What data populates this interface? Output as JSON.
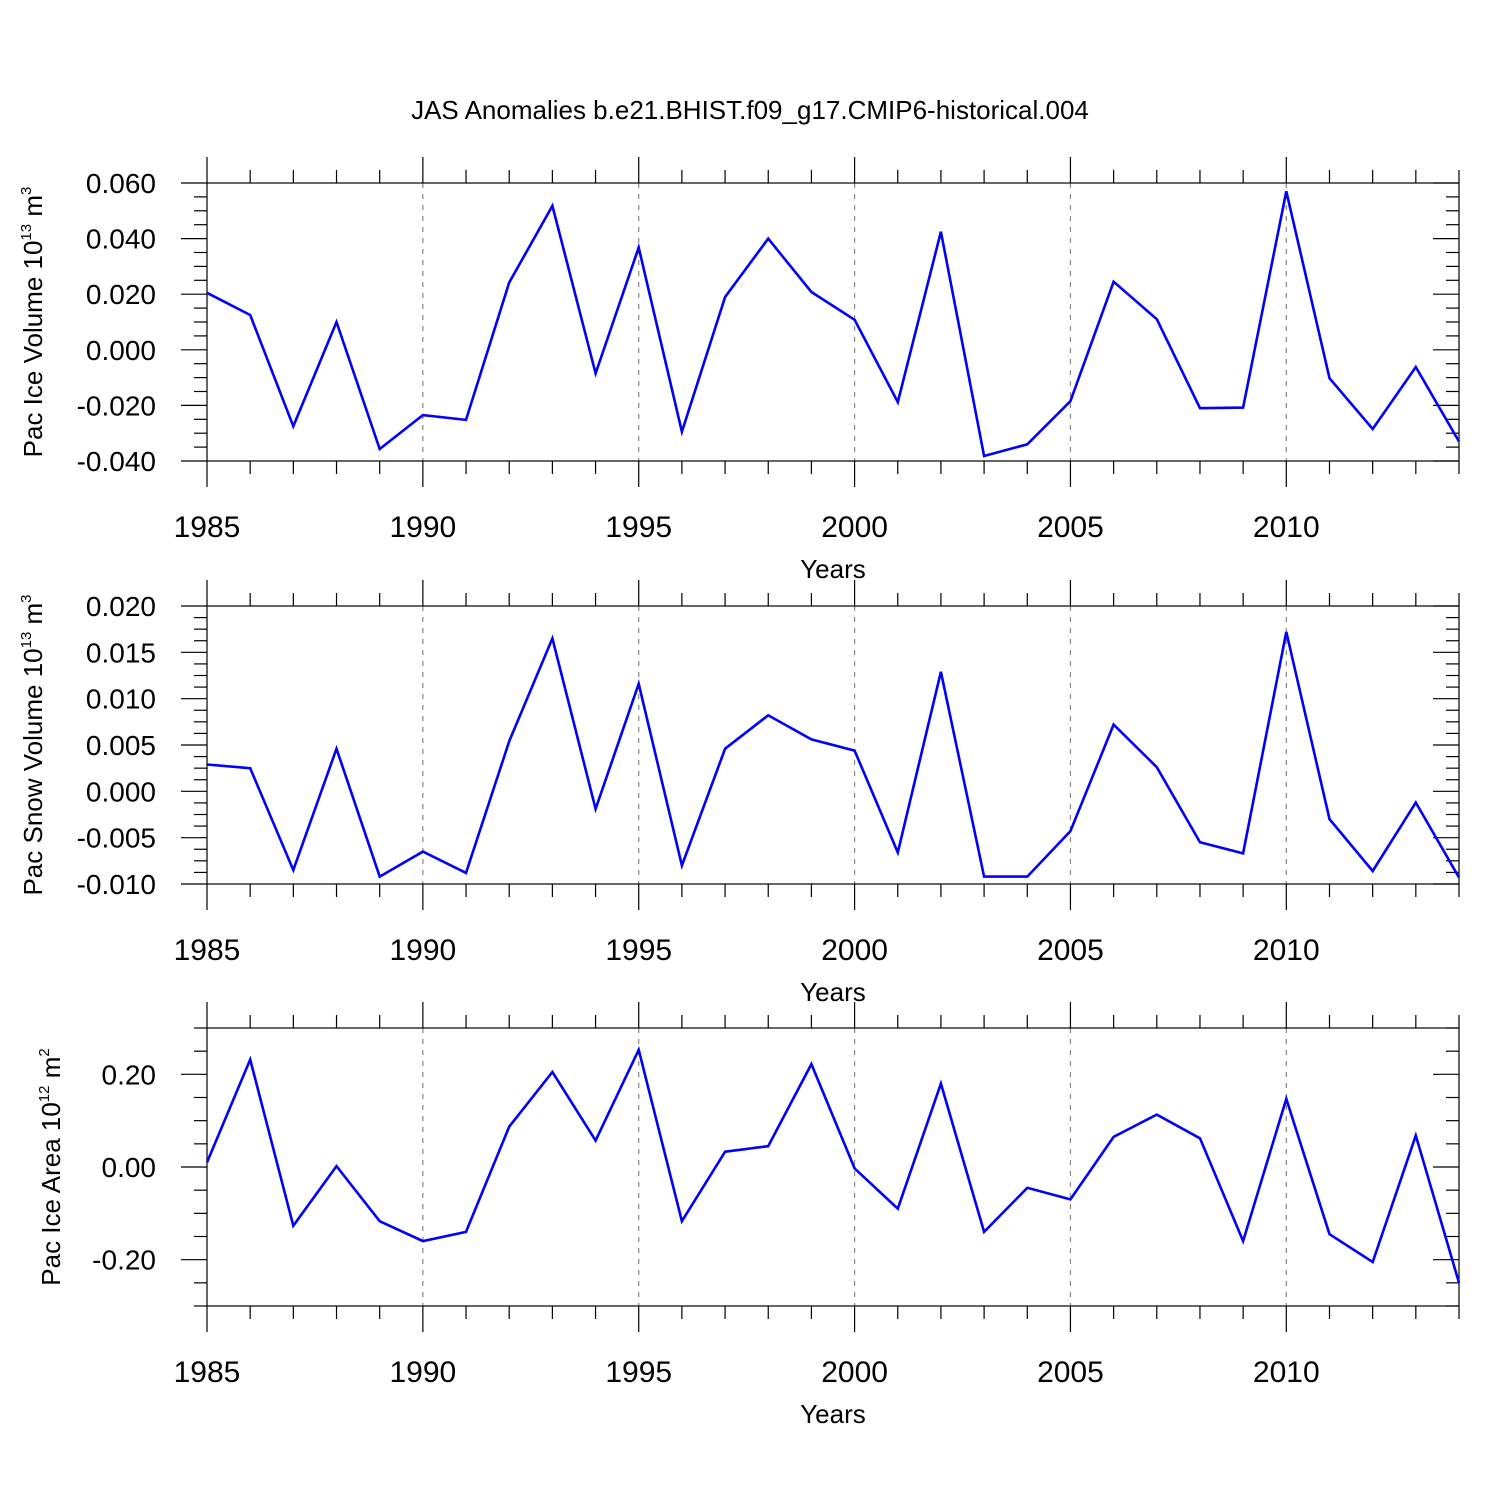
{
  "title": "JAS Anomalies b.e21.BHIST.f09_g17.CMIP6-historical.004",
  "line_color": "#0000ff",
  "chart_data": [
    {
      "type": "line",
      "ylabel": {
        "base": "Pac Ice Volume 10",
        "exp1": "13",
        "unit": " m",
        "exp2": "3"
      },
      "xlabel": "Years",
      "xlim": [
        1985,
        2014
      ],
      "ylim": [
        -0.04,
        0.06
      ],
      "x_ticks": [
        1985,
        1990,
        1995,
        2000,
        2005,
        2010
      ],
      "x_tick_labels": [
        "1985",
        "1990",
        "1995",
        "2000",
        "2005",
        "2010"
      ],
      "y_ticks": [
        -0.04,
        -0.02,
        0.0,
        0.02,
        0.04,
        0.06
      ],
      "y_tick_labels": [
        "-0.040",
        "-0.020",
        "0.000",
        "0.020",
        "0.040",
        "0.060"
      ],
      "x": [
        1985,
        1986,
        1987,
        1988,
        1989,
        1990,
        1991,
        1992,
        1993,
        1994,
        1995,
        1996,
        1997,
        1998,
        1999,
        2000,
        2001,
        2002,
        2003,
        2004,
        2005,
        2006,
        2007,
        2008,
        2009,
        2010,
        2011,
        2012,
        2013,
        2014
      ],
      "values": [
        0.0205,
        0.0125,
        -0.0275,
        0.01,
        -0.0357,
        -0.0235,
        -0.0252,
        0.0242,
        0.0518,
        -0.0085,
        0.0368,
        -0.0295,
        0.019,
        0.04,
        0.0208,
        0.0108,
        -0.0188,
        0.0425,
        -0.0382,
        -0.034,
        -0.0185,
        0.0245,
        0.011,
        -0.021,
        -0.0208,
        0.057,
        -0.0102,
        -0.0285,
        -0.0062,
        -0.033
      ]
    },
    {
      "type": "line",
      "ylabel": {
        "base": "Pac Snow Volume 10",
        "exp1": "13",
        "unit": " m",
        "exp2": "3"
      },
      "xlabel": "Years",
      "xlim": [
        1985,
        2014
      ],
      "ylim": [
        -0.01,
        0.02
      ],
      "x_ticks": [
        1985,
        1990,
        1995,
        2000,
        2005,
        2010
      ],
      "x_tick_labels": [
        "1985",
        "1990",
        "1995",
        "2000",
        "2005",
        "2010"
      ],
      "y_ticks": [
        -0.01,
        -0.005,
        0.0,
        0.005,
        0.01,
        0.015,
        0.02
      ],
      "y_tick_labels": [
        "-0.010",
        "-0.005",
        "0.000",
        "0.005",
        "0.010",
        "0.015",
        "0.020"
      ],
      "x": [
        1985,
        1986,
        1987,
        1988,
        1989,
        1990,
        1991,
        1992,
        1993,
        1994,
        1995,
        1996,
        1997,
        1998,
        1999,
        2000,
        2001,
        2002,
        2003,
        2004,
        2005,
        2006,
        2007,
        2008,
        2009,
        2010,
        2011,
        2012,
        2013,
        2014
      ],
      "values": [
        0.0029,
        0.0025,
        -0.0085,
        0.0046,
        -0.0092,
        -0.0065,
        -0.0088,
        0.0054,
        0.0165,
        -0.0019,
        0.0116,
        -0.008,
        0.0046,
        0.0082,
        0.0056,
        0.0044,
        -0.0066,
        0.0129,
        -0.0092,
        -0.0092,
        -0.0043,
        0.0072,
        0.0026,
        -0.0055,
        -0.0067,
        0.0172,
        -0.003,
        -0.0086,
        -0.0012,
        -0.0093
      ]
    },
    {
      "type": "line",
      "ylabel": {
        "base": "Pac Ice Area 10",
        "exp1": "12",
        "unit": " m",
        "exp2": "2"
      },
      "xlabel": "Years",
      "xlim": [
        1985,
        2014
      ],
      "ylim": [
        -0.3,
        0.3
      ],
      "x_ticks": [
        1985,
        1990,
        1995,
        2000,
        2005,
        2010
      ],
      "x_tick_labels": [
        "1985",
        "1990",
        "1995",
        "2000",
        "2005",
        "2010"
      ],
      "y_ticks": [
        -0.2,
        0.0,
        0.2
      ],
      "y_tick_labels": [
        "-0.20",
        "0.00",
        "0.20"
      ],
      "x": [
        1985,
        1986,
        1987,
        1988,
        1989,
        1990,
        1991,
        1992,
        1993,
        1994,
        1995,
        1996,
        1997,
        1998,
        1999,
        2000,
        2001,
        2002,
        2003,
        2004,
        2005,
        2006,
        2007,
        2008,
        2009,
        2010,
        2011,
        2012,
        2013,
        2014
      ],
      "values": [
        0.01,
        0.232,
        -0.127,
        0.002,
        -0.117,
        -0.16,
        -0.14,
        0.087,
        0.205,
        0.057,
        0.253,
        -0.117,
        0.033,
        0.045,
        0.222,
        -0.003,
        -0.09,
        0.18,
        -0.14,
        -0.045,
        -0.07,
        0.065,
        0.113,
        0.062,
        -0.16,
        0.147,
        -0.145,
        -0.205,
        0.068,
        -0.25
      ]
    }
  ]
}
